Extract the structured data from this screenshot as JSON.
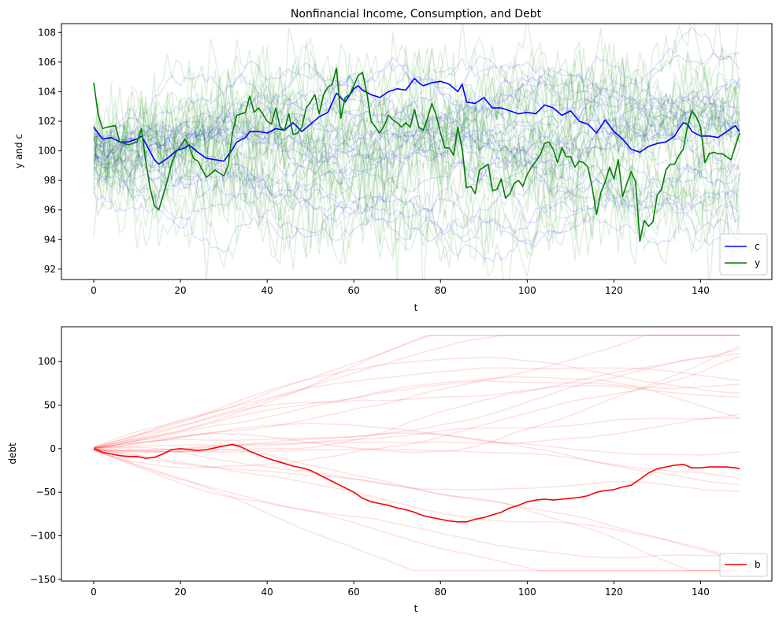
{
  "chart_data": [
    {
      "type": "line",
      "title": "Nonfinancial Income, Consumption, and Debt",
      "xlabel": "t",
      "ylabel": "y and c",
      "xlim": [
        -7.45,
        156.45
      ],
      "ylim": [
        91.3,
        108.6
      ],
      "xticks": [
        0,
        20,
        40,
        60,
        80,
        100,
        120,
        140
      ],
      "yticks": [
        92,
        94,
        96,
        98,
        100,
        102,
        104,
        106,
        108
      ],
      "legend_position": "lower-right",
      "grid": false,
      "colors": {
        "c": "#0000ff",
        "y": "#008000"
      },
      "series": [
        {
          "name": "c",
          "color": "#0000ff",
          "x": [
            0,
            2,
            4,
            6,
            8,
            10,
            11,
            12,
            14,
            15,
            17,
            19,
            21,
            22,
            24,
            26,
            28,
            30,
            32,
            33,
            35,
            36,
            38,
            40,
            42,
            44,
            46,
            48,
            50,
            52,
            54,
            56,
            58,
            60,
            61,
            62,
            64,
            66,
            68,
            70,
            72,
            74,
            75,
            76,
            78,
            80,
            82,
            84,
            85,
            86,
            88,
            90,
            92,
            94,
            96,
            98,
            100,
            102,
            104,
            106,
            108,
            110,
            112,
            114,
            116,
            118,
            120,
            122,
            124,
            126,
            128,
            130,
            132,
            134,
            135,
            136,
            137,
            138,
            140,
            142,
            144,
            146,
            148,
            149
          ],
          "values": [
            101.6,
            100.8,
            100.9,
            100.6,
            100.6,
            100.8,
            101.0,
            100.5,
            99.4,
            99.1,
            99.5,
            100.0,
            100.2,
            100.4,
            99.9,
            99.5,
            99.4,
            99.3,
            100.1,
            100.6,
            100.9,
            101.3,
            101.3,
            101.2,
            101.5,
            101.4,
            101.9,
            101.3,
            101.8,
            102.3,
            102.6,
            103.9,
            103.3,
            104.2,
            104.4,
            104.1,
            103.8,
            103.6,
            104.0,
            104.2,
            104.1,
            104.9,
            104.6,
            104.4,
            104.6,
            104.7,
            104.5,
            104.0,
            104.5,
            103.3,
            103.2,
            103.6,
            102.9,
            102.9,
            102.7,
            102.5,
            102.6,
            102.5,
            103.1,
            102.9,
            102.4,
            102.7,
            102.0,
            101.8,
            101.2,
            102.1,
            101.3,
            100.8,
            100.1,
            99.9,
            100.3,
            100.5,
            100.6,
            101.0,
            101.5,
            101.9,
            101.8,
            101.3,
            101.0,
            101.0,
            100.9,
            101.3,
            101.7,
            101.3
          ]
        },
        {
          "name": "y",
          "color": "#008000",
          "x": [
            0,
            1,
            2,
            3,
            5,
            6,
            8,
            10,
            11,
            12,
            13,
            14,
            15,
            16,
            17,
            18,
            19,
            20,
            21,
            22,
            23,
            24,
            26,
            28,
            30,
            31,
            32,
            33,
            34,
            35,
            36,
            37,
            38,
            39,
            40,
            41,
            42,
            43,
            44,
            45,
            46,
            47,
            48,
            49,
            50,
            51,
            52,
            53,
            54,
            55,
            56,
            57,
            58,
            59,
            60,
            61,
            62,
            63,
            64,
            65,
            66,
            67,
            68,
            69,
            70,
            71,
            72,
            73,
            74,
            75,
            76,
            77,
            78,
            79,
            80,
            81,
            82,
            83,
            84,
            85,
            86,
            87,
            88,
            89,
            90,
            91,
            92,
            93,
            94,
            95,
            96,
            97,
            98,
            99,
            100,
            101,
            102,
            103,
            104,
            105,
            106,
            107,
            108,
            109,
            110,
            111,
            112,
            113,
            114,
            115,
            116,
            117,
            118,
            119,
            120,
            121,
            122,
            123,
            124,
            125,
            126,
            127,
            128,
            129,
            130,
            131,
            132,
            133,
            134,
            135,
            136,
            137,
            138,
            139,
            140,
            141,
            142,
            143,
            144,
            145,
            146,
            147,
            148,
            149
          ],
          "values": [
            104.6,
            102.5,
            101.5,
            101.6,
            101.7,
            100.6,
            100.4,
            100.6,
            101.5,
            99.3,
            97.5,
            96.3,
            96.0,
            97.0,
            98.0,
            99.2,
            99.9,
            100.3,
            100.8,
            100.3,
            99.5,
            99.3,
            98.2,
            98.7,
            98.3,
            99.0,
            101.2,
            102.4,
            102.5,
            102.6,
            103.7,
            102.6,
            102.9,
            102.5,
            102.0,
            101.8,
            102.9,
            101.6,
            101.4,
            102.5,
            101.1,
            101.2,
            101.6,
            102.9,
            103.3,
            103.8,
            102.5,
            103.8,
            104.3,
            104.5,
            105.6,
            102.2,
            103.6,
            103.8,
            104.4,
            105.1,
            105.3,
            103.9,
            102.0,
            101.6,
            101.2,
            101.7,
            102.4,
            102.1,
            101.9,
            101.6,
            101.9,
            101.6,
            102.8,
            101.6,
            101.4,
            102.2,
            103.2,
            102.4,
            101.2,
            100.2,
            100.2,
            99.7,
            101.6,
            100.1,
            97.5,
            97.6,
            97.1,
            98.7,
            98.9,
            99.1,
            97.3,
            97.4,
            98.1,
            96.8,
            97.1,
            97.8,
            98.0,
            97.6,
            98.4,
            98.9,
            99.3,
            99.7,
            100.5,
            100.6,
            100.1,
            99.2,
            100.2,
            99.6,
            99.6,
            98.9,
            99.3,
            99.2,
            98.9,
            97.5,
            95.7,
            97.2,
            97.9,
            98.9,
            98.1,
            99.4,
            96.9,
            97.8,
            98.6,
            97.9,
            93.9,
            95.3,
            94.9,
            95.2,
            97.0,
            97.4,
            98.7,
            99.1,
            99.1,
            99.7,
            100.1,
            101.7,
            102.7,
            102.3,
            101.6,
            99.2,
            99.8,
            99.9,
            99.8,
            99.8,
            99.6,
            99.4,
            100.3,
            101.2
          ],
          "values_note": ""
        }
      ]
    },
    {
      "type": "line",
      "title": "",
      "xlabel": "t",
      "ylabel": "debt",
      "xlim": [
        -7.45,
        156.45
      ],
      "ylim": [
        -152,
        140
      ],
      "xticks": [
        0,
        20,
        40,
        60,
        80,
        100,
        120,
        140
      ],
      "yticks": [
        -150,
        -100,
        -50,
        0,
        50,
        100
      ],
      "legend_position": "lower-right",
      "grid": false,
      "colors": {
        "b": "#ff0000"
      },
      "series": [
        {
          "name": "b",
          "color": "#ff0000",
          "x": [
            0,
            2,
            4,
            6,
            8,
            10,
            12,
            14,
            16,
            18,
            20,
            22,
            24,
            26,
            28,
            30,
            32,
            34,
            36,
            38,
            40,
            42,
            44,
            46,
            48,
            50,
            52,
            54,
            56,
            58,
            60,
            62,
            64,
            66,
            68,
            70,
            72,
            74,
            76,
            78,
            80,
            82,
            84,
            86,
            88,
            90,
            92,
            94,
            96,
            98,
            100,
            102,
            104,
            106,
            108,
            110,
            112,
            114,
            116,
            118,
            120,
            122,
            124,
            126,
            128,
            130,
            132,
            134,
            136,
            138,
            140,
            142,
            144,
            146,
            148,
            149
          ],
          "values": [
            0,
            -4,
            -6,
            -8,
            -9,
            -9,
            -11,
            -10,
            -6,
            -1,
            0,
            -1,
            -2,
            -1,
            1,
            3,
            5,
            2,
            -3,
            -7,
            -11,
            -14,
            -17,
            -20,
            -22,
            -25,
            -30,
            -35,
            -40,
            -45,
            -50,
            -57,
            -61,
            -63,
            -65,
            -68,
            -70,
            -73,
            -77,
            -79,
            -81,
            -83,
            -84,
            -84,
            -81,
            -79,
            -76,
            -73,
            -68,
            -65,
            -61,
            -59,
            -58,
            -59,
            -58,
            -57,
            -56,
            -54,
            -50,
            -48,
            -47,
            -44,
            -42,
            -35,
            -28,
            -23,
            -21,
            -19,
            -18,
            -22,
            -22,
            -21,
            -21,
            -21,
            -22,
            -23
          ]
        }
      ]
    }
  ]
}
